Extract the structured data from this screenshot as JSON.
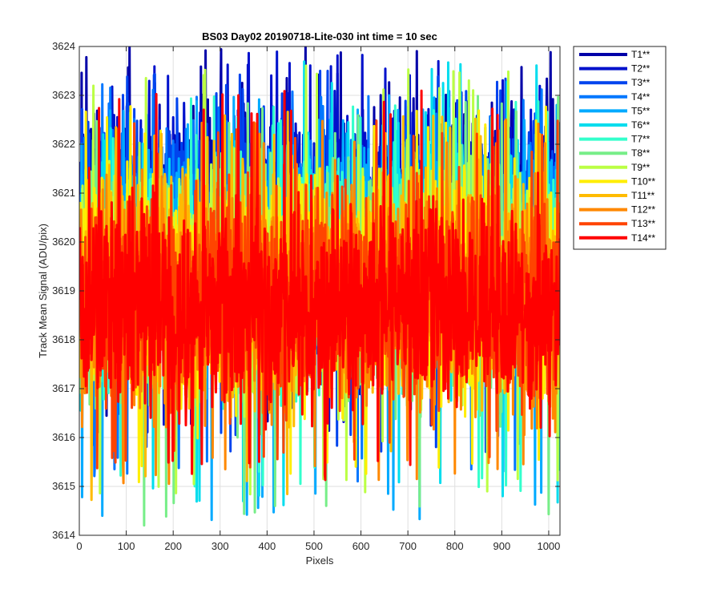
{
  "chart_data": {
    "type": "line",
    "title": "BS03 Day02 20190718-Lite-030 int time = 10 sec",
    "xlabel": "Pixels",
    "ylabel": "Track Mean Signal (ADU/pix)",
    "xlim": [
      0,
      1024
    ],
    "ylim": [
      3614,
      3624
    ],
    "xticks": [
      0,
      100,
      200,
      300,
      400,
      500,
      600,
      700,
      800,
      900,
      1000
    ],
    "yticks": [
      3614,
      3615,
      3616,
      3617,
      3618,
      3619,
      3620,
      3621,
      3622,
      3623,
      3624
    ],
    "grid": true,
    "legend_position": "outside-top-right",
    "x_points": 1024,
    "series": [
      {
        "name": "T1**",
        "color": "#0000A8",
        "mean": 3620.6,
        "spread": 1.1,
        "low_clip": 3616.3,
        "high_clip": 3624.0
      },
      {
        "name": "T2**",
        "color": "#0011CC",
        "mean": 3620.4,
        "spread": 1.1,
        "low_clip": 3615.9,
        "high_clip": 3623.9
      },
      {
        "name": "T3**",
        "color": "#0044EE",
        "mean": 3620.2,
        "spread": 1.1,
        "low_clip": 3615.5,
        "high_clip": 3623.5
      },
      {
        "name": "T4**",
        "color": "#0077FF",
        "mean": 3620.0,
        "spread": 1.1,
        "low_clip": 3615.0,
        "high_clip": 3623.3
      },
      {
        "name": "T5**",
        "color": "#00AAFF",
        "mean": 3619.8,
        "spread": 1.1,
        "low_clip": 3614.3,
        "high_clip": 3623.0
      },
      {
        "name": "T6**",
        "color": "#00DDEE",
        "mean": 3619.6,
        "spread": 1.1,
        "low_clip": 3614.5,
        "high_clip": 3623.8
      },
      {
        "name": "T7**",
        "color": "#33FFCC",
        "mean": 3619.4,
        "spread": 1.1,
        "low_clip": 3614.8,
        "high_clip": 3623.0
      },
      {
        "name": "T8**",
        "color": "#77EE88",
        "mean": 3619.2,
        "spread": 1.1,
        "low_clip": 3614.1,
        "high_clip": 3623.0
      },
      {
        "name": "T9**",
        "color": "#BBFF44",
        "mean": 3619.2,
        "spread": 1.1,
        "low_clip": 3614.8,
        "high_clip": 3623.7
      },
      {
        "name": "T10**",
        "color": "#FFEE00",
        "mean": 3619.1,
        "spread": 1.1,
        "low_clip": 3615.0,
        "high_clip": 3622.8
      },
      {
        "name": "T11**",
        "color": "#FFBB00",
        "mean": 3619.0,
        "spread": 1.1,
        "low_clip": 3614.7,
        "high_clip": 3622.7
      },
      {
        "name": "T12**",
        "color": "#FF8800",
        "mean": 3618.9,
        "spread": 1.1,
        "low_clip": 3615.0,
        "high_clip": 3622.6
      },
      {
        "name": "T13**",
        "color": "#FF4400",
        "mean": 3618.8,
        "spread": 1.05,
        "low_clip": 3615.3,
        "high_clip": 3622.5
      },
      {
        "name": "T14**",
        "color": "#FF0000",
        "mean": 3618.7,
        "spread": 1.0,
        "low_clip": 3615.0,
        "high_clip": 3623.1
      }
    ]
  }
}
